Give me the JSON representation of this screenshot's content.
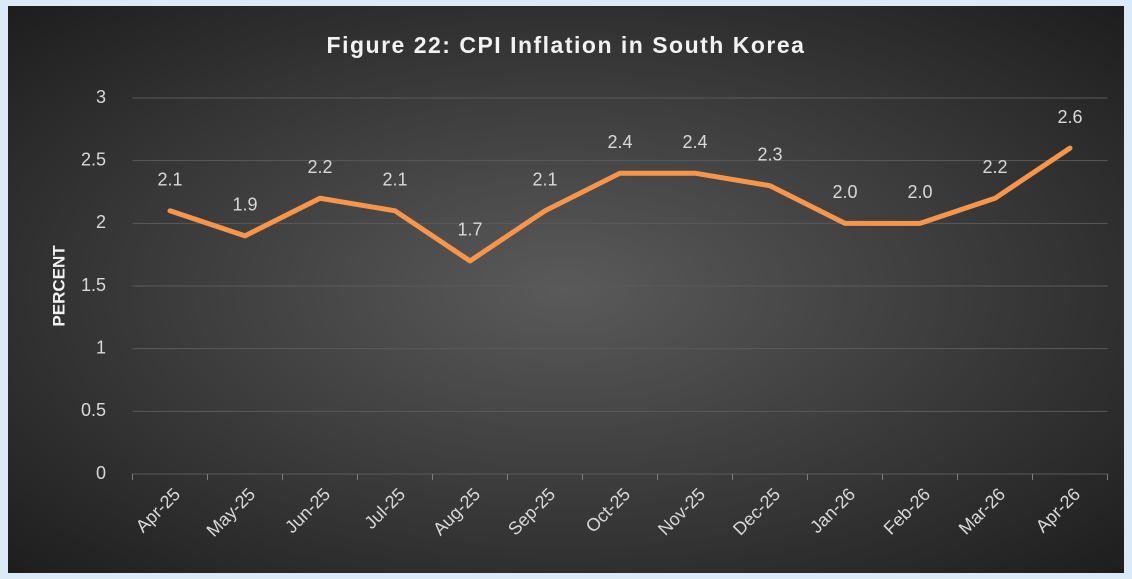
{
  "chart_data": {
    "type": "line",
    "title": "Figure  22: CPI Inflation in South Korea",
    "y_label": "PERCENT",
    "categories": [
      "Apr-25",
      "May-25",
      "Jun-25",
      "Jul-25",
      "Aug-25",
      "Sep-25",
      "Oct-25",
      "Nov-25",
      "Dec-25",
      "Jan-26",
      "Feb-26",
      "Mar-26",
      "Apr-26"
    ],
    "series": [
      {
        "name": "CPI Inflation",
        "color": "#f7964a",
        "values": [
          2.1,
          1.9,
          2.2,
          2.1,
          1.7,
          2.1,
          2.4,
          2.4,
          2.3,
          2.0,
          2.0,
          2.2,
          2.6
        ],
        "value_labels": [
          "2.1",
          "1.9",
          "2.2",
          "2.1",
          "1.7",
          "2.1",
          "2.4",
          "2.4",
          "2.3",
          "2.0",
          "2.0",
          "2.2",
          "2.6"
        ]
      }
    ],
    "ylim": [
      0,
      3
    ],
    "yticks": [
      0,
      0.5,
      1,
      1.5,
      2,
      2.5,
      3
    ],
    "grid": true
  }
}
